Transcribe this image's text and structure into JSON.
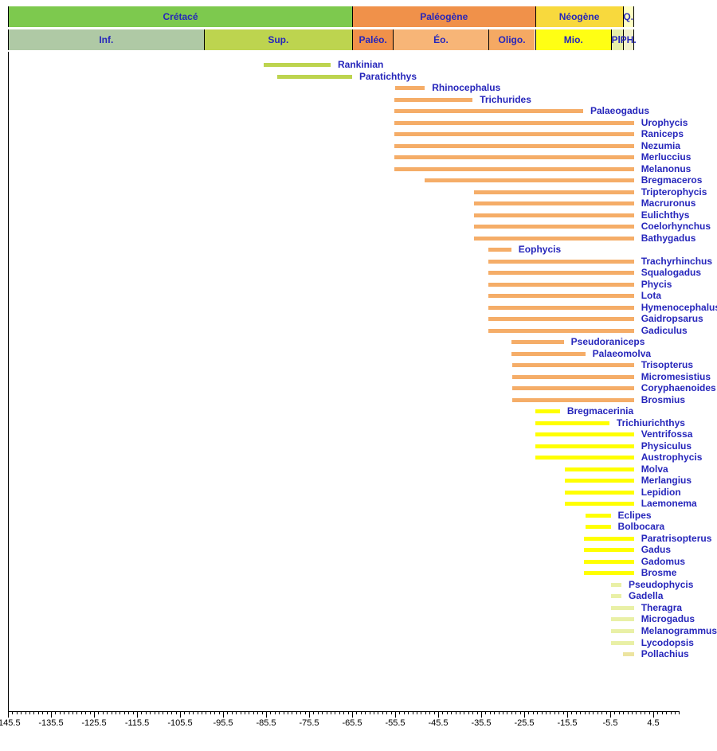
{
  "colors": {
    "label_text": "#2626bb",
    "axis_text": "#000000",
    "axis_line": "#000000",
    "background": "#ffffff",
    "bar_orange": "#f5ad68",
    "bar_green": "#bdd44f",
    "bar_yellow": "#ffff00",
    "bar_pale": "#e9f0a6",
    "bar_khaki": "#ece4a0"
  },
  "chart_data": {
    "type": "bar",
    "subtype": "stratigraphic-range-chart",
    "title": "",
    "xlabel": "",
    "ylabel": "",
    "xlim": [
      -145.5,
      10.5
    ],
    "x_major_ticks": [
      -145.5,
      -135.5,
      -125.5,
      -115.5,
      -105.5,
      -95.5,
      -85.5,
      -75.5,
      -65.5,
      -55.5,
      -45.5,
      -35.5,
      -25.5,
      -15.5,
      -5.5,
      4.5
    ],
    "x_minor_tick_step": 1,
    "grid": false,
    "legend": false,
    "header_rows": {
      "periods": [
        {
          "label": "Crétacé",
          "start": -145.5,
          "end": -65.5,
          "color": "#7dc94e"
        },
        {
          "label": "Paléogène",
          "start": -65.5,
          "end": -23.0,
          "color": "#f0914a"
        },
        {
          "label": "Néogène",
          "start": -23.0,
          "end": -2.6,
          "color": "#f8d93d"
        },
        {
          "label": "Q.",
          "start": -2.6,
          "end": 0,
          "color": "#ffffc4"
        }
      ],
      "epochs": [
        {
          "label": "Inf.",
          "start": -145.5,
          "end": -100.0,
          "color": "#afc9a5"
        },
        {
          "label": "Sup.",
          "start": -100.0,
          "end": -65.5,
          "color": "#bdd44f"
        },
        {
          "label": "Paléo.",
          "start": -65.5,
          "end": -56.0,
          "color": "#f0914a"
        },
        {
          "label": "Éo.",
          "start": -56.0,
          "end": -33.9,
          "color": "#f7b577"
        },
        {
          "label": "Oligo.",
          "start": -33.9,
          "end": -23.0,
          "color": "#f5a963"
        },
        {
          "label": "Mio.",
          "start": -23.0,
          "end": -5.3,
          "color": "#ffff14"
        },
        {
          "label": "Pl.",
          "start": -5.3,
          "end": -2.6,
          "color": "#e7eea8"
        },
        {
          "label": "PH.",
          "start": -2.6,
          "end": 0,
          "color": "#f2f2cc"
        }
      ]
    },
    "taxa": [
      {
        "name": "Rankinian",
        "start": -86.0,
        "end": -70.5,
        "color_key": "bar_green"
      },
      {
        "name": "Paratichthys",
        "start": -83.0,
        "end": -65.5,
        "color_key": "bar_green"
      },
      {
        "name": "Rhinocephalus",
        "start": -55.5,
        "end": -48.6,
        "color_key": "bar_orange"
      },
      {
        "name": "Trichurides",
        "start": -55.7,
        "end": -37.5,
        "color_key": "bar_orange"
      },
      {
        "name": "Palaeogadus",
        "start": -55.7,
        "end": -11.8,
        "color_key": "bar_orange"
      },
      {
        "name": "Urophycis",
        "start": -55.7,
        "end": 0,
        "color_key": "bar_orange"
      },
      {
        "name": "Raniceps",
        "start": -55.7,
        "end": 0,
        "color_key": "bar_orange"
      },
      {
        "name": "Nezumia",
        "start": -55.7,
        "end": 0,
        "color_key": "bar_orange"
      },
      {
        "name": "Merluccius",
        "start": -55.7,
        "end": 0,
        "color_key": "bar_orange"
      },
      {
        "name": "Melanonus",
        "start": -55.7,
        "end": 0,
        "color_key": "bar_orange"
      },
      {
        "name": "Bregmaceros",
        "start": -48.6,
        "end": 0,
        "color_key": "bar_orange"
      },
      {
        "name": "Tripterophycis",
        "start": -37.2,
        "end": 0,
        "color_key": "bar_orange"
      },
      {
        "name": "Macruronus",
        "start": -37.2,
        "end": 0,
        "color_key": "bar_orange"
      },
      {
        "name": "Eulichthys",
        "start": -37.2,
        "end": 0,
        "color_key": "bar_orange"
      },
      {
        "name": "Coelorhynchus",
        "start": -37.2,
        "end": 0,
        "color_key": "bar_orange"
      },
      {
        "name": "Bathygadus",
        "start": -37.2,
        "end": 0,
        "color_key": "bar_orange"
      },
      {
        "name": "Eophycis",
        "start": -33.9,
        "end": -28.5,
        "color_key": "bar_orange"
      },
      {
        "name": "Trachyrhinchus",
        "start": -33.9,
        "end": 0,
        "color_key": "bar_orange"
      },
      {
        "name": "Squalogadus",
        "start": -33.9,
        "end": 0,
        "color_key": "bar_orange"
      },
      {
        "name": "Phycis",
        "start": -33.9,
        "end": 0,
        "color_key": "bar_orange"
      },
      {
        "name": "Lota",
        "start": -33.9,
        "end": 0,
        "color_key": "bar_orange"
      },
      {
        "name": "Hymenocephalus",
        "start": -33.9,
        "end": 0,
        "color_key": "bar_orange"
      },
      {
        "name": "Gaidropsarus",
        "start": -33.9,
        "end": 0,
        "color_key": "bar_orange"
      },
      {
        "name": "Gadiculus",
        "start": -33.9,
        "end": 0,
        "color_key": "bar_orange"
      },
      {
        "name": "Pseudoraniceps",
        "start": -28.5,
        "end": -16.3,
        "color_key": "bar_orange"
      },
      {
        "name": "Palaeomolva",
        "start": -28.5,
        "end": -11.3,
        "color_key": "bar_orange"
      },
      {
        "name": "Trisopterus",
        "start": -28.3,
        "end": 0,
        "color_key": "bar_orange"
      },
      {
        "name": "Micromesistius",
        "start": -28.3,
        "end": 0,
        "color_key": "bar_orange"
      },
      {
        "name": "Coryphaenoides",
        "start": -28.3,
        "end": 0,
        "color_key": "bar_orange"
      },
      {
        "name": "Brosmius",
        "start": -28.3,
        "end": 0,
        "color_key": "bar_orange"
      },
      {
        "name": "Bregmacerinia",
        "start": -23.0,
        "end": -17.2,
        "color_key": "bar_yellow"
      },
      {
        "name": "Trichiurichthys",
        "start": -23.0,
        "end": -5.7,
        "color_key": "bar_yellow"
      },
      {
        "name": "Ventrifossa",
        "start": -23.0,
        "end": 0,
        "color_key": "bar_yellow"
      },
      {
        "name": "Physiculus",
        "start": -23.0,
        "end": 0,
        "color_key": "bar_yellow"
      },
      {
        "name": "Austrophycis",
        "start": -23.0,
        "end": 0,
        "color_key": "bar_yellow"
      },
      {
        "name": "Molva",
        "start": -16.1,
        "end": 0,
        "color_key": "bar_yellow"
      },
      {
        "name": "Merlangius",
        "start": -16.1,
        "end": 0,
        "color_key": "bar_yellow"
      },
      {
        "name": "Lepidion",
        "start": -16.1,
        "end": 0,
        "color_key": "bar_yellow"
      },
      {
        "name": "Laemonema",
        "start": -16.1,
        "end": 0,
        "color_key": "bar_yellow"
      },
      {
        "name": "Eclipes",
        "start": -11.3,
        "end": -5.4,
        "color_key": "bar_yellow"
      },
      {
        "name": "Bolbocara",
        "start": -11.3,
        "end": -5.4,
        "color_key": "bar_yellow"
      },
      {
        "name": "Paratrisopterus",
        "start": -11.6,
        "end": 0,
        "color_key": "bar_yellow"
      },
      {
        "name": "Gadus",
        "start": -11.6,
        "end": 0,
        "color_key": "bar_yellow"
      },
      {
        "name": "Gadomus",
        "start": -11.6,
        "end": 0,
        "color_key": "bar_yellow"
      },
      {
        "name": "Brosme",
        "start": -11.6,
        "end": 0,
        "color_key": "bar_yellow"
      },
      {
        "name": "Pseudophycis",
        "start": -5.3,
        "end": -2.9,
        "color_key": "bar_pale"
      },
      {
        "name": "Gadella",
        "start": -5.3,
        "end": -2.9,
        "color_key": "bar_pale"
      },
      {
        "name": "Theragra",
        "start": -5.3,
        "end": 0,
        "color_key": "bar_pale"
      },
      {
        "name": "Microgadus",
        "start": -5.3,
        "end": 0,
        "color_key": "bar_pale"
      },
      {
        "name": "Melanogrammus",
        "start": -5.3,
        "end": 0,
        "color_key": "bar_pale"
      },
      {
        "name": "Lycodopsis",
        "start": -5.3,
        "end": 0,
        "color_key": "bar_pale"
      },
      {
        "name": "Pollachius",
        "start": -2.6,
        "end": 0,
        "color_key": "bar_khaki"
      }
    ]
  }
}
